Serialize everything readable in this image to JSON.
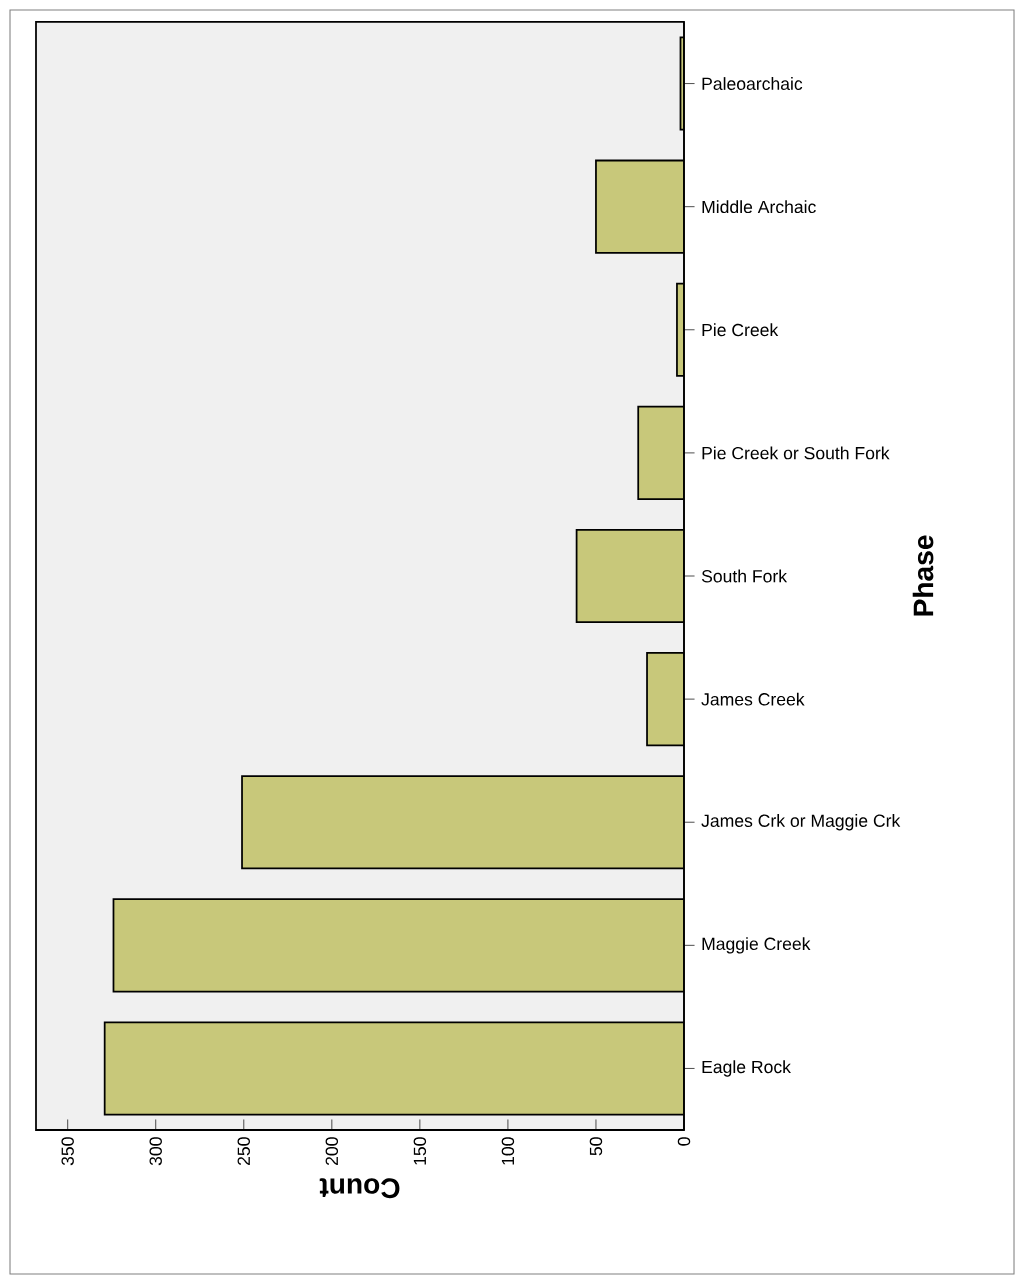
{
  "chart_data": {
    "type": "bar",
    "orientation": "horizontal",
    "xlabel": "Count",
    "ylabel": "Phase",
    "categories": [
      "Paleoarchaic",
      "Middle Archaic",
      "Pie Creek",
      "Pie Creek or South Fork",
      "South Fork",
      "James Creek",
      "James Crk or Maggie Crk",
      "Maggie Creek",
      "Eagle Rock"
    ],
    "values": [
      2,
      50,
      4,
      26,
      61,
      21,
      251,
      324,
      329
    ],
    "color": "#c8c87a",
    "xlim": [
      368,
      0
    ],
    "xticks": [
      0,
      50,
      100,
      150,
      200,
      250,
      300,
      350
    ]
  }
}
